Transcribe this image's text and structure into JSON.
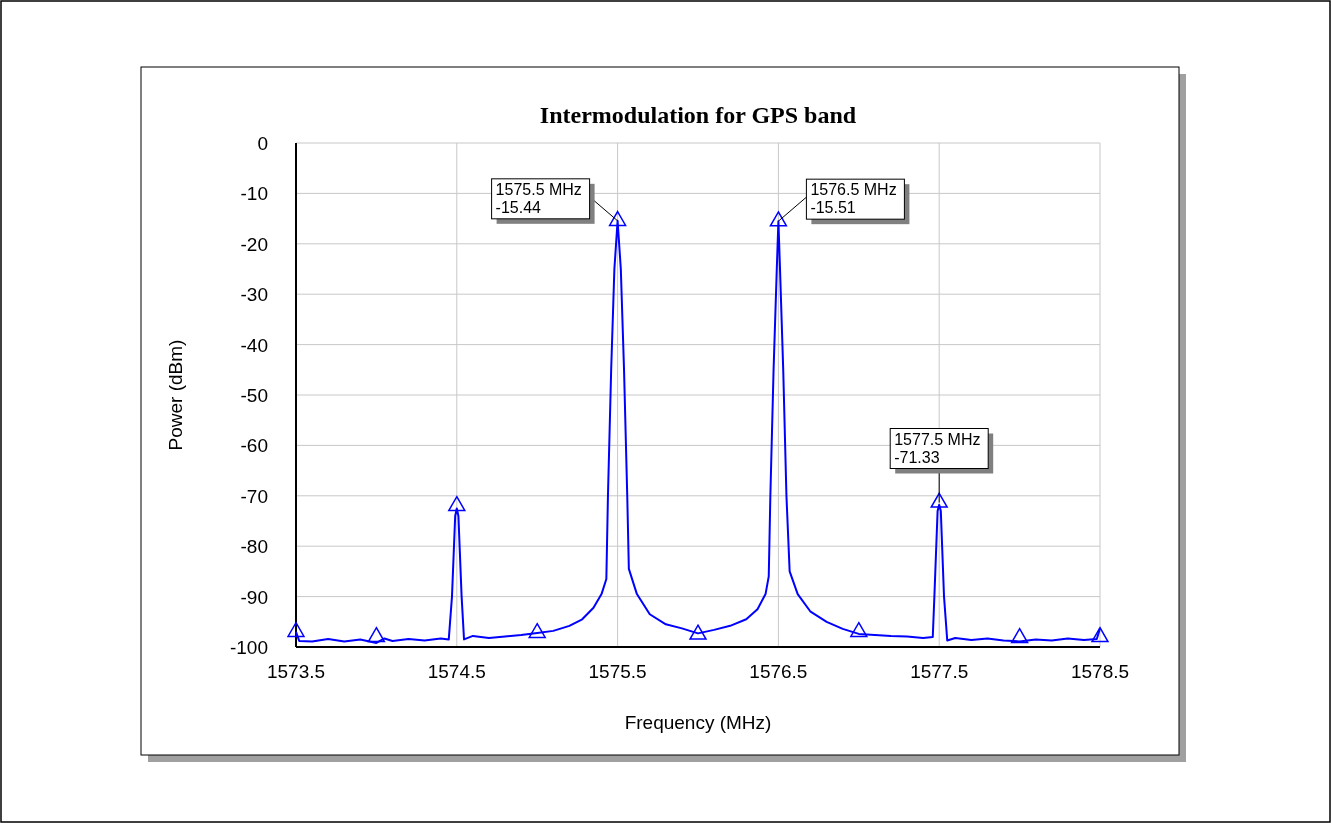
{
  "chart_data": {
    "type": "line",
    "title": "Intermodulation for GPS band",
    "xlabel": "Frequency (MHz)",
    "ylabel": "Power (dBm)",
    "xlim": [
      1573.5,
      1578.5
    ],
    "xticks": [
      1573.5,
      1574.5,
      1575.5,
      1576.5,
      1577.5,
      1578.5
    ],
    "ylim": [
      -100,
      0
    ],
    "yticks": [
      0,
      -10,
      -20,
      -30,
      -40,
      -50,
      -60,
      -70,
      -80,
      -90,
      -100
    ],
    "grid": true,
    "series": [
      {
        "color": "#0000ff",
        "marker": "none",
        "x": [
          1573.5,
          1573.52,
          1573.6,
          1573.7,
          1573.8,
          1573.9,
          1574.0,
          1574.05,
          1574.1,
          1574.2,
          1574.3,
          1574.4,
          1574.45,
          1574.47,
          1574.49,
          1574.5,
          1574.51,
          1574.53,
          1574.545,
          1574.6,
          1574.7,
          1574.8,
          1574.9,
          1575.0,
          1575.1,
          1575.2,
          1575.28,
          1575.35,
          1575.4,
          1575.43,
          1575.44,
          1575.46,
          1575.48,
          1575.5,
          1575.52,
          1575.54,
          1575.56,
          1575.57,
          1575.62,
          1575.7,
          1575.8,
          1575.9,
          1576.0,
          1576.1,
          1576.2,
          1576.3,
          1576.37,
          1576.42,
          1576.44,
          1576.45,
          1576.47,
          1576.49,
          1576.5,
          1576.51,
          1576.53,
          1576.55,
          1576.57,
          1576.62,
          1576.7,
          1576.8,
          1576.9,
          1577.0,
          1577.1,
          1577.2,
          1577.3,
          1577.4,
          1577.46,
          1577.47,
          1577.49,
          1577.5,
          1577.51,
          1577.53,
          1577.55,
          1577.6,
          1577.7,
          1577.8,
          1577.9,
          1578.0,
          1578.1,
          1578.2,
          1578.3,
          1578.4,
          1578.48,
          1578.5
        ],
        "values": [
          -97,
          -98.8,
          -98.9,
          -98.4,
          -98.9,
          -98.5,
          -99.2,
          -98.3,
          -98.8,
          -98.4,
          -98.7,
          -98.3,
          -98.5,
          -90,
          -74,
          -72.5,
          -74,
          -90,
          -98.5,
          -97.8,
          -98.2,
          -97.9,
          -97.6,
          -97.2,
          -96.8,
          -95.8,
          -94.5,
          -92.2,
          -89.5,
          -86.5,
          -70,
          -45,
          -25,
          -15.44,
          -25,
          -45,
          -70,
          -84.5,
          -89.5,
          -93.5,
          -95.5,
          -96.3,
          -97.3,
          -96.6,
          -95.8,
          -94.5,
          -92.5,
          -89.5,
          -86,
          -70,
          -45,
          -25,
          -15.51,
          -25,
          -45,
          -70,
          -85,
          -89.5,
          -93,
          -95,
          -96.4,
          -97.4,
          -97.6,
          -97.8,
          -97.9,
          -98.2,
          -98,
          -90,
          -73,
          -71.8,
          -73,
          -90,
          -98.7,
          -98.2,
          -98.6,
          -98.3,
          -98.7,
          -98.9,
          -98.5,
          -98.7,
          -98.3,
          -98.6,
          -98.4,
          -96.3
        ]
      },
      {
        "type": "scatter",
        "color": "#0000ff",
        "marker": "triangle",
        "x": [
          1573.5,
          1574.0,
          1574.5,
          1575.0,
          1575.5,
          1576.0,
          1576.5,
          1577.0,
          1577.5,
          1578.0,
          1578.5
        ],
        "values": [
          -97,
          -98,
          -72,
          -97.2,
          -15.44,
          -97.5,
          -15.51,
          -97,
          -71.33,
          -98.2,
          -98
        ]
      }
    ],
    "annotations": [
      {
        "text": "1575.5 MHz\n-15.44",
        "x": 1575.5,
        "y": -15.44
      },
      {
        "text": "1576.5 MHz\n-15.51",
        "x": 1576.5,
        "y": -15.51
      },
      {
        "text": "1577.5 MHz\n-71.33",
        "x": 1577.5,
        "y": -71.33
      }
    ]
  }
}
